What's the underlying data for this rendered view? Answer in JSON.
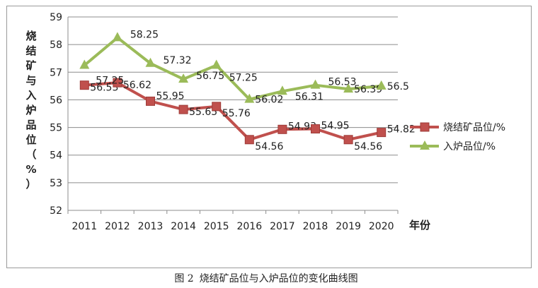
{
  "chart_data": {
    "type": "line",
    "title": "",
    "xlabel": "年份",
    "ylabel": "烧结矿与入炉品位（%）",
    "categories": [
      "2011",
      "2012",
      "2013",
      "2014",
      "2015",
      "2016",
      "2017",
      "2018",
      "2019",
      "2020"
    ],
    "ylim": [
      52,
      59
    ],
    "yticks": [
      "52",
      "53",
      "54",
      "55",
      "56",
      "57",
      "58",
      "59"
    ],
    "grid": true,
    "legend_position": "right",
    "series": [
      {
        "name": "烧结矿品位/%",
        "values": [
          56.53,
          56.62,
          55.95,
          55.65,
          55.76,
          54.56,
          54.93,
          54.95,
          54.56,
          54.82
        ],
        "color": "#c0504d",
        "marker": "square"
      },
      {
        "name": "入炉品位/%",
        "values": [
          57.25,
          58.25,
          57.32,
          56.75,
          57.25,
          56.02,
          56.31,
          56.53,
          56.39,
          56.5
        ],
        "color": "#9bbb59",
        "marker": "triangle"
      }
    ]
  },
  "caption": {
    "figure_no": "图 2",
    "text": "烧结矿品位与入炉品位的变化曲线图"
  }
}
